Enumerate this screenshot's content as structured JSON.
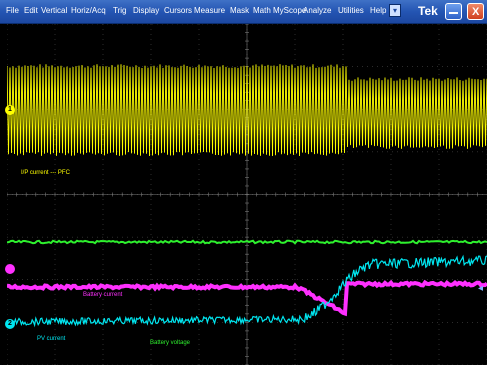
{
  "menu": {
    "items": [
      "File",
      "Edit",
      "Vertical",
      "Horiz/Acq",
      "Trig",
      "Display",
      "Cursors",
      "Measure",
      "Mask",
      "Math",
      "MyScope",
      "Analyze",
      "Utilities",
      "Help"
    ],
    "help_icon": "dropdown-icon"
  },
  "brand": "Tek",
  "window_buttons": {
    "minimize": "minimize-icon",
    "close_label": "X"
  },
  "colors": {
    "ch1": "#ffff00",
    "ch2": "#00e6f0",
    "ch3": "#ff30ff",
    "ch4": "#2ef02e",
    "grid": "#5a5a5a",
    "menubar": "#2455b3"
  },
  "channels": {
    "ch1": {
      "marker": "1",
      "label": "I/P current --- PFC"
    },
    "ch2": {
      "marker": "2",
      "label": "PV current"
    },
    "ch3": {
      "label": "Battery current"
    },
    "ch4": {
      "label": "Battery voltage"
    }
  }
}
